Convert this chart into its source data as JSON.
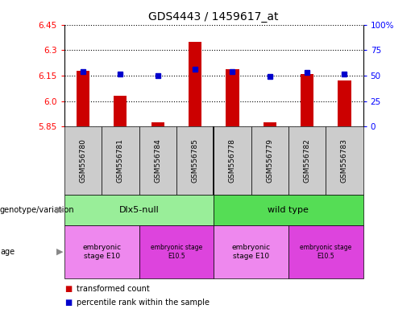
{
  "title": "GDS4443 / 1459617_at",
  "samples": [
    "GSM556780",
    "GSM556781",
    "GSM556784",
    "GSM556785",
    "GSM556778",
    "GSM556779",
    "GSM556782",
    "GSM556783"
  ],
  "red_values": [
    6.18,
    6.03,
    5.875,
    6.35,
    6.19,
    5.875,
    6.16,
    6.12
  ],
  "blue_pcts": [
    54,
    52,
    50,
    56,
    54,
    49,
    53,
    52
  ],
  "ymin": 5.85,
  "ymax": 6.45,
  "yticks": [
    5.85,
    6.0,
    6.15,
    6.3,
    6.45
  ],
  "y2ticks": [
    0,
    25,
    50,
    75,
    100
  ],
  "y2ticklabels": [
    "0",
    "25",
    "50",
    "75",
    "100%"
  ],
  "bar_color": "#cc0000",
  "dot_color": "#0000cc",
  "genotype_groups": [
    {
      "label": "Dlx5-null",
      "start": 0,
      "end": 4,
      "color": "#99ee99"
    },
    {
      "label": "wild type",
      "start": 4,
      "end": 8,
      "color": "#55dd55"
    }
  ],
  "age_groups": [
    {
      "label": "embryonic\nstage E10",
      "start": 0,
      "end": 2,
      "color": "#ee88ee",
      "fontsize": 6.5,
      "small": false
    },
    {
      "label": "embryonic stage\nE10.5",
      "start": 2,
      "end": 4,
      "color": "#dd44dd",
      "fontsize": 5.5,
      "small": true
    },
    {
      "label": "embryonic\nstage E10",
      "start": 4,
      "end": 6,
      "color": "#ee88ee",
      "fontsize": 6.5,
      "small": false
    },
    {
      "label": "embryonic stage\nE10.5",
      "start": 6,
      "end": 8,
      "color": "#dd44dd",
      "fontsize": 5.5,
      "small": true
    }
  ],
  "legend_red": "transformed count",
  "legend_blue": "percentile rank within the sample",
  "xlabel_genotype": "genotype/variation",
  "xlabel_age": "age",
  "bar_width": 0.35,
  "sample_label_fontsize": 6.5,
  "title_fontsize": 10
}
